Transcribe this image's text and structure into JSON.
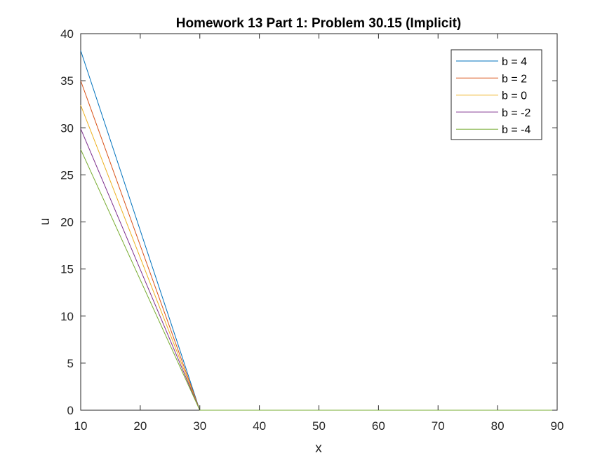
{
  "chart_data": {
    "type": "line",
    "title": "Homework 13 Part 1: Problem 30.15 (Implicit)",
    "xlabel": "x",
    "ylabel": "u",
    "xlim": [
      10,
      90
    ],
    "ylim": [
      0,
      40
    ],
    "xticks": [
      10,
      20,
      30,
      40,
      50,
      60,
      70,
      80,
      90
    ],
    "yticks": [
      0,
      5,
      10,
      15,
      20,
      25,
      30,
      35,
      40
    ],
    "grid": false,
    "legend_position": "top-right",
    "series": [
      {
        "name": "b = 4",
        "color": "#0072BD",
        "x": [
          10,
          30,
          90
        ],
        "y": [
          38.2,
          0,
          0
        ]
      },
      {
        "name": "b = 2",
        "color": "#D95319",
        "x": [
          10,
          30,
          90
        ],
        "y": [
          35.0,
          0,
          0
        ]
      },
      {
        "name": "b = 0",
        "color": "#EDB120",
        "x": [
          10,
          30,
          90
        ],
        "y": [
          32.4,
          0,
          0
        ]
      },
      {
        "name": "b = -2",
        "color": "#7E2F8E",
        "x": [
          10,
          30,
          90
        ],
        "y": [
          29.9,
          0,
          0
        ]
      },
      {
        "name": "b = -4",
        "color": "#77AC30",
        "x": [
          10,
          30,
          90
        ],
        "y": [
          27.7,
          0,
          0
        ]
      }
    ]
  }
}
